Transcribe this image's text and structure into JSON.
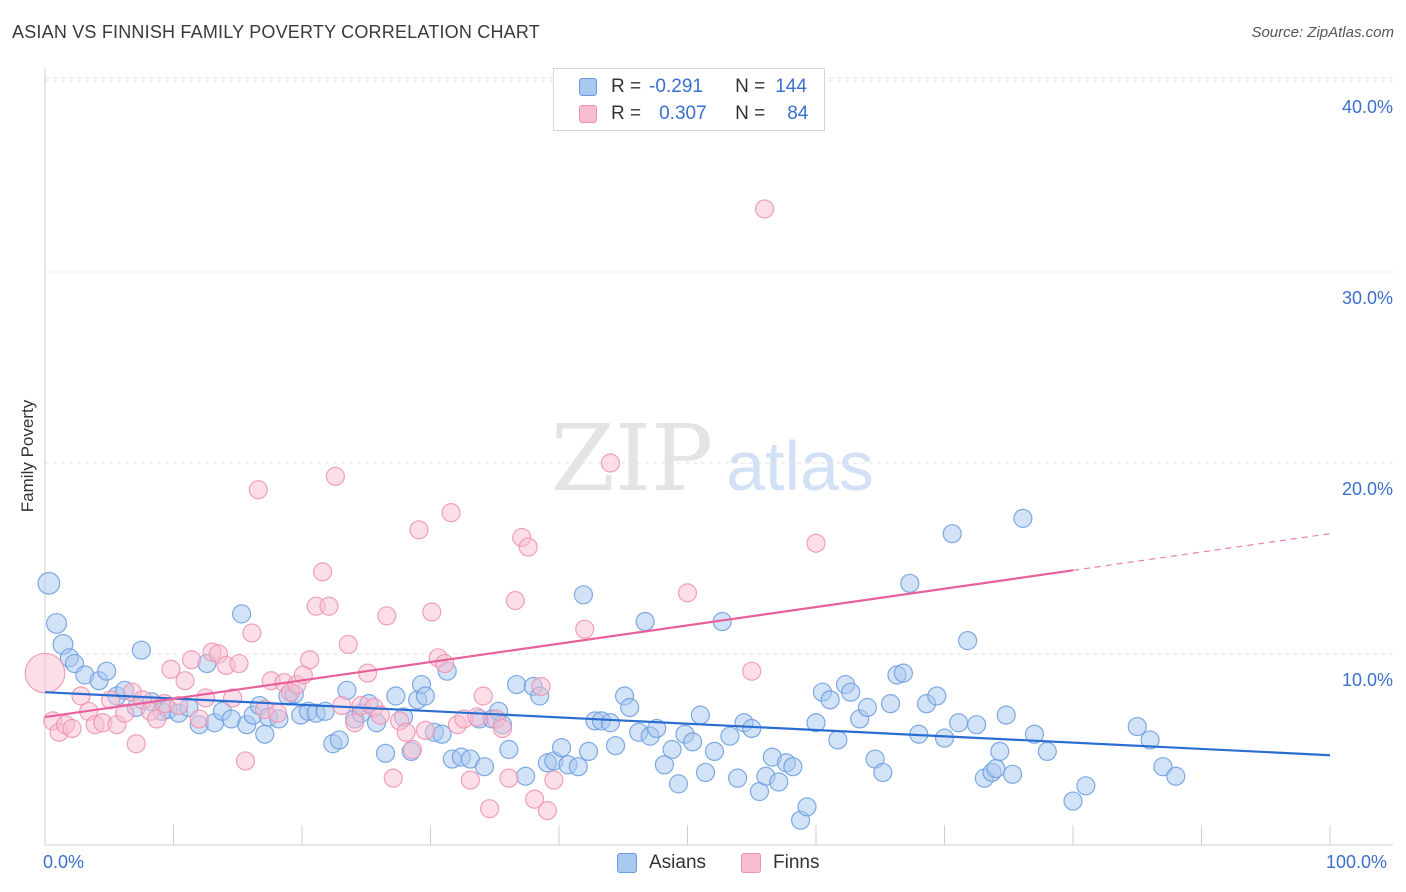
{
  "header": {
    "title": "ASIAN VS FINNISH FAMILY POVERTY CORRELATION CHART",
    "source": "Source: ZipAtlas.com"
  },
  "legend": {
    "r_label": "R =",
    "n_label": "N =",
    "rows": [
      {
        "r": "-0.291",
        "n": "144"
      },
      {
        "r": "0.307",
        "n": "84"
      }
    ]
  },
  "bottom_legend": [
    "Asians",
    "Finns"
  ],
  "x_tick_labels": {
    "min": "0.0%",
    "max": "100.0%"
  },
  "watermark": {
    "zip": "ZIP",
    "atlas": "atlas"
  },
  "colors": {
    "asians_fill": "#a8c8f0",
    "asians_stroke": "#6a9be0",
    "asians_line": "#2a6dd0",
    "finns_fill": "#f8bed0",
    "finns_stroke": "#ee90b0",
    "finns_line": "#e8609a",
    "axis_text": "#3b6fcc",
    "grid": "#e3e3e3"
  },
  "chart_data": {
    "type": "scatter",
    "title": "ASIAN VS FINNISH FAMILY POVERTY CORRELATION CHART",
    "xlabel": "",
    "ylabel": "Family Poverty",
    "xlim": [
      0,
      100
    ],
    "ylim": [
      0,
      40
    ],
    "y_ticks": [
      {
        "value": 10,
        "label": "10.0%"
      },
      {
        "value": 20,
        "label": "20.0%"
      },
      {
        "value": 30,
        "label": "30.0%"
      },
      {
        "value": 40,
        "label": "40.0%"
      }
    ],
    "grid": true,
    "legend_position": "top-center",
    "series": [
      {
        "name": "Asians",
        "color": "#6a9be0",
        "trend": {
          "x": [
            0,
            100
          ],
          "y": [
            8.0,
            4.7
          ],
          "dashed_from": null
        },
        "points": [
          [
            0.3,
            13.7,
            1.2
          ],
          [
            0.9,
            11.6,
            1.1
          ],
          [
            1.4,
            10.5,
            1.1
          ],
          [
            1.9,
            9.8,
            1
          ],
          [
            2.3,
            9.5,
            1
          ],
          [
            3.1,
            8.9,
            1
          ],
          [
            4.2,
            8.6,
            1
          ],
          [
            4.8,
            9.1,
            1
          ],
          [
            5.6,
            7.8,
            1
          ],
          [
            6.2,
            8.1,
            1
          ],
          [
            7.1,
            7.2,
            1
          ],
          [
            7.5,
            10.2,
            1
          ],
          [
            8.3,
            7.5,
            1
          ],
          [
            9.1,
            7.0,
            1
          ],
          [
            9.6,
            7.1,
            1
          ],
          [
            10.4,
            6.9,
            1
          ],
          [
            11.2,
            7.2,
            1
          ],
          [
            12.0,
            6.3,
            1
          ],
          [
            12.6,
            9.5,
            1
          ],
          [
            13.2,
            6.4,
            1
          ],
          [
            13.8,
            7.0,
            1
          ],
          [
            14.5,
            6.6,
            1
          ],
          [
            15.3,
            12.1,
            1
          ],
          [
            15.7,
            6.3,
            1
          ],
          [
            16.2,
            6.8,
            1
          ],
          [
            16.7,
            7.3,
            1
          ],
          [
            17.4,
            6.7,
            1
          ],
          [
            17.1,
            5.8,
            1
          ],
          [
            18.2,
            6.6,
            1
          ],
          [
            18.9,
            7.8,
            1
          ],
          [
            19.4,
            7.9,
            1
          ],
          [
            19.9,
            6.8,
            1
          ],
          [
            20.5,
            7.0,
            1
          ],
          [
            21.1,
            6.9,
            1
          ],
          [
            21.8,
            7.0,
            1
          ],
          [
            22.4,
            5.3,
            1
          ],
          [
            22.9,
            5.5,
            1
          ],
          [
            23.5,
            8.1,
            1
          ],
          [
            24.1,
            6.6,
            1
          ],
          [
            24.6,
            6.9,
            1
          ],
          [
            25.2,
            7.4,
            1
          ],
          [
            25.8,
            6.4,
            1
          ],
          [
            26.5,
            4.8,
            1
          ],
          [
            27.3,
            7.8,
            1
          ],
          [
            27.9,
            6.7,
            1
          ],
          [
            28.5,
            4.9,
            1
          ],
          [
            29.0,
            7.6,
            1
          ],
          [
            29.3,
            8.4,
            1
          ],
          [
            29.6,
            7.8,
            1
          ],
          [
            30.3,
            5.9,
            1
          ],
          [
            30.9,
            5.8,
            1
          ],
          [
            31.3,
            9.1,
            1
          ],
          [
            31.7,
            4.5,
            1
          ],
          [
            32.4,
            4.6,
            1
          ],
          [
            33.1,
            4.5,
            1
          ],
          [
            33.8,
            6.6,
            1
          ],
          [
            34.2,
            4.1,
            1
          ],
          [
            34.8,
            6.6,
            1
          ],
          [
            35.3,
            7.0,
            1
          ],
          [
            35.6,
            6.3,
            1
          ],
          [
            36.1,
            5.0,
            1
          ],
          [
            36.7,
            8.4,
            1
          ],
          [
            37.4,
            3.6,
            1
          ],
          [
            38.0,
            8.3,
            1
          ],
          [
            38.5,
            7.8,
            1
          ],
          [
            39.1,
            4.3,
            1
          ],
          [
            39.6,
            4.4,
            1
          ],
          [
            40.2,
            5.1,
            1
          ],
          [
            40.7,
            4.2,
            1
          ],
          [
            41.5,
            4.1,
            1
          ],
          [
            41.9,
            13.1,
            1
          ],
          [
            42.3,
            4.9,
            1
          ],
          [
            42.8,
            6.5,
            1
          ],
          [
            43.3,
            6.5,
            1
          ],
          [
            44.0,
            6.4,
            1
          ],
          [
            44.4,
            5.2,
            1
          ],
          [
            45.1,
            7.8,
            1
          ],
          [
            45.5,
            7.2,
            1
          ],
          [
            46.2,
            5.9,
            1
          ],
          [
            46.7,
            11.7,
            1
          ],
          [
            47.1,
            5.7,
            1
          ],
          [
            47.6,
            6.1,
            1
          ],
          [
            48.2,
            4.2,
            1
          ],
          [
            48.8,
            5.0,
            1
          ],
          [
            49.3,
            3.2,
            1
          ],
          [
            49.8,
            5.8,
            1
          ],
          [
            50.4,
            5.4,
            1
          ],
          [
            51.0,
            6.8,
            1
          ],
          [
            51.4,
            3.8,
            1
          ],
          [
            52.1,
            4.9,
            1
          ],
          [
            52.7,
            11.7,
            1
          ],
          [
            53.3,
            5.7,
            1
          ],
          [
            53.9,
            3.5,
            1
          ],
          [
            54.4,
            6.4,
            1
          ],
          [
            55.0,
            6.1,
            1
          ],
          [
            55.6,
            2.8,
            1
          ],
          [
            56.1,
            3.6,
            1
          ],
          [
            56.6,
            4.6,
            1
          ],
          [
            57.1,
            3.3,
            1
          ],
          [
            57.7,
            4.3,
            1
          ],
          [
            58.2,
            4.1,
            1
          ],
          [
            58.8,
            1.3,
            1
          ],
          [
            59.3,
            2.0,
            1
          ],
          [
            60.0,
            6.4,
            1
          ],
          [
            60.5,
            8.0,
            1
          ],
          [
            61.1,
            7.6,
            1
          ],
          [
            61.7,
            5.5,
            1
          ],
          [
            62.3,
            8.4,
            1
          ],
          [
            62.7,
            8.0,
            1
          ],
          [
            63.4,
            6.6,
            1
          ],
          [
            64.0,
            7.2,
            1
          ],
          [
            64.6,
            4.5,
            1
          ],
          [
            65.2,
            3.8,
            1
          ],
          [
            65.8,
            7.4,
            1
          ],
          [
            66.3,
            8.9,
            1
          ],
          [
            66.8,
            9.0,
            1
          ],
          [
            67.3,
            13.7,
            1
          ],
          [
            68.0,
            5.8,
            1
          ],
          [
            68.6,
            7.4,
            1
          ],
          [
            69.4,
            7.8,
            1
          ],
          [
            70.0,
            5.6,
            1
          ],
          [
            70.6,
            16.3,
            1
          ],
          [
            71.1,
            6.4,
            1
          ],
          [
            71.8,
            10.7,
            1
          ],
          [
            72.5,
            6.3,
            1
          ],
          [
            73.1,
            3.5,
            1
          ],
          [
            73.7,
            3.8,
            1
          ],
          [
            74.0,
            4.0,
            1
          ],
          [
            74.3,
            4.9,
            1
          ],
          [
            74.8,
            6.8,
            1
          ],
          [
            75.3,
            3.7,
            1
          ],
          [
            76.1,
            17.1,
            1
          ],
          [
            77.0,
            5.8,
            1
          ],
          [
            78.0,
            4.9,
            1
          ],
          [
            80.0,
            2.3,
            1
          ],
          [
            81.0,
            3.1,
            1
          ],
          [
            85.0,
            6.2,
            1
          ],
          [
            86.0,
            5.5,
            1
          ],
          [
            87.0,
            4.1,
            1
          ],
          [
            88.0,
            3.6,
            1
          ]
        ]
      },
      {
        "name": "Finns",
        "color": "#ee90b0",
        "trend": {
          "x": [
            0,
            100
          ],
          "y": [
            6.7,
            16.3
          ],
          "dashed_from": 80
        },
        "points": [
          [
            0.0,
            9.0,
            2.2
          ],
          [
            0.6,
            6.5,
            1
          ],
          [
            1.1,
            5.9,
            1
          ],
          [
            1.6,
            6.3,
            1
          ],
          [
            2.1,
            6.1,
            1
          ],
          [
            2.8,
            7.8,
            1
          ],
          [
            3.4,
            7.0,
            1
          ],
          [
            3.9,
            6.3,
            1
          ],
          [
            4.5,
            6.4,
            1
          ],
          [
            5.1,
            7.6,
            1
          ],
          [
            5.6,
            6.3,
            1
          ],
          [
            6.2,
            6.9,
            1
          ],
          [
            6.8,
            8.0,
            1
          ],
          [
            7.1,
            5.3,
            1
          ],
          [
            7.6,
            7.6,
            1
          ],
          [
            8.2,
            7.0,
            1
          ],
          [
            8.7,
            6.6,
            1
          ],
          [
            9.3,
            7.4,
            1
          ],
          [
            9.8,
            9.2,
            1
          ],
          [
            10.4,
            7.3,
            1
          ],
          [
            10.9,
            8.6,
            1
          ],
          [
            11.4,
            9.7,
            1
          ],
          [
            12.0,
            6.6,
            1
          ],
          [
            12.5,
            7.7,
            1
          ],
          [
            13.0,
            10.1,
            1
          ],
          [
            13.5,
            10.0,
            1
          ],
          [
            14.1,
            9.4,
            1
          ],
          [
            14.6,
            7.7,
            1
          ],
          [
            15.1,
            9.5,
            1
          ],
          [
            15.6,
            4.4,
            1
          ],
          [
            16.1,
            11.1,
            1
          ],
          [
            16.6,
            18.6,
            1
          ],
          [
            17.1,
            7.1,
            1
          ],
          [
            17.6,
            8.6,
            1
          ],
          [
            18.1,
            6.9,
            1
          ],
          [
            18.6,
            8.5,
            1
          ],
          [
            19.1,
            8.0,
            1
          ],
          [
            19.6,
            8.4,
            1
          ],
          [
            20.1,
            8.9,
            1
          ],
          [
            20.6,
            9.7,
            1
          ],
          [
            21.1,
            12.5,
            1
          ],
          [
            21.6,
            14.3,
            1
          ],
          [
            22.1,
            12.5,
            1
          ],
          [
            22.6,
            19.3,
            1
          ],
          [
            23.1,
            7.3,
            1
          ],
          [
            23.6,
            10.5,
            1
          ],
          [
            24.1,
            6.4,
            1
          ],
          [
            24.6,
            7.3,
            1
          ],
          [
            25.1,
            9.0,
            1
          ],
          [
            25.6,
            7.2,
            1
          ],
          [
            26.1,
            6.8,
            1
          ],
          [
            26.6,
            12.0,
            1
          ],
          [
            27.1,
            3.5,
            1
          ],
          [
            27.6,
            6.5,
            1
          ],
          [
            28.1,
            5.9,
            1
          ],
          [
            28.6,
            5.0,
            1
          ],
          [
            29.1,
            16.5,
            1
          ],
          [
            29.6,
            6.0,
            1
          ],
          [
            30.1,
            12.2,
            1
          ],
          [
            30.6,
            9.8,
            1
          ],
          [
            31.1,
            9.5,
            1
          ],
          [
            31.6,
            17.4,
            1
          ],
          [
            32.1,
            6.3,
            1
          ],
          [
            32.6,
            6.6,
            1
          ],
          [
            33.1,
            3.4,
            1
          ],
          [
            33.6,
            6.7,
            1
          ],
          [
            34.1,
            7.8,
            1
          ],
          [
            34.6,
            1.9,
            1
          ],
          [
            35.1,
            6.6,
            1
          ],
          [
            35.6,
            6.1,
            1
          ],
          [
            36.1,
            3.5,
            1
          ],
          [
            36.6,
            12.8,
            1
          ],
          [
            37.1,
            16.1,
            1
          ],
          [
            37.6,
            15.6,
            1
          ],
          [
            38.1,
            2.4,
            1
          ],
          [
            38.6,
            8.3,
            1
          ],
          [
            39.1,
            1.8,
            1
          ],
          [
            39.6,
            3.4,
            1
          ],
          [
            42.0,
            11.3,
            1
          ],
          [
            44.0,
            20.0,
            1
          ],
          [
            50.0,
            13.2,
            1
          ],
          [
            55.0,
            9.1,
            1
          ],
          [
            60.0,
            15.8,
            1
          ],
          [
            56.0,
            33.3,
            1
          ]
        ]
      }
    ]
  }
}
